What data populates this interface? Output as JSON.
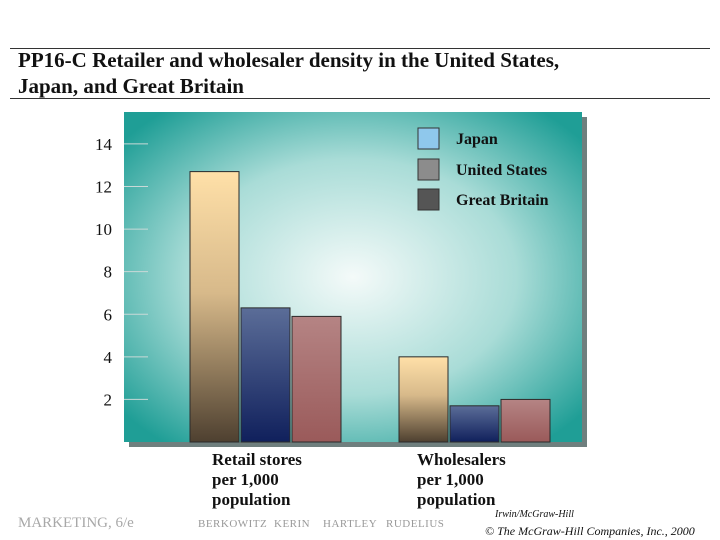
{
  "header": {
    "title_line1": "PP16-C  Retailer and wholesaler density in the United States,",
    "title_line2": "Japan, and Great Britain"
  },
  "chart_data": {
    "type": "bar",
    "title": "",
    "xlabel": "",
    "ylabel": "",
    "categories": [
      [
        "Retail stores",
        "per 1,000",
        "population"
      ],
      [
        "Wholesalers",
        "per 1,000",
        "population"
      ]
    ],
    "series": [
      {
        "name": "Japan",
        "values": [
          12.7,
          4.0
        ],
        "color": "#8fc8ec"
      },
      {
        "name": "United States",
        "values": [
          6.3,
          1.7
        ],
        "color": "#8c8c8c"
      },
      {
        "name": "Great Britain",
        "values": [
          5.9,
          2.0
        ],
        "color": "#555555"
      }
    ],
    "bar_fills": [
      "japan",
      "us",
      "gb"
    ],
    "ylim": [
      0,
      15.5
    ],
    "yticks": [
      2,
      4,
      6,
      8,
      10,
      12,
      14
    ],
    "grid": false,
    "legend_placement": "top-right",
    "plot_background": "#1f9e96"
  },
  "footer": {
    "brand": "MARKETING, 6/e",
    "authors": [
      "BERKOWITZ",
      "KERIN",
      "HARTLEY",
      "RUDELIUS"
    ],
    "publisher": "Irwin/McGraw-Hill",
    "copyright": "© The McGraw-Hill Companies, Inc., 2000"
  }
}
